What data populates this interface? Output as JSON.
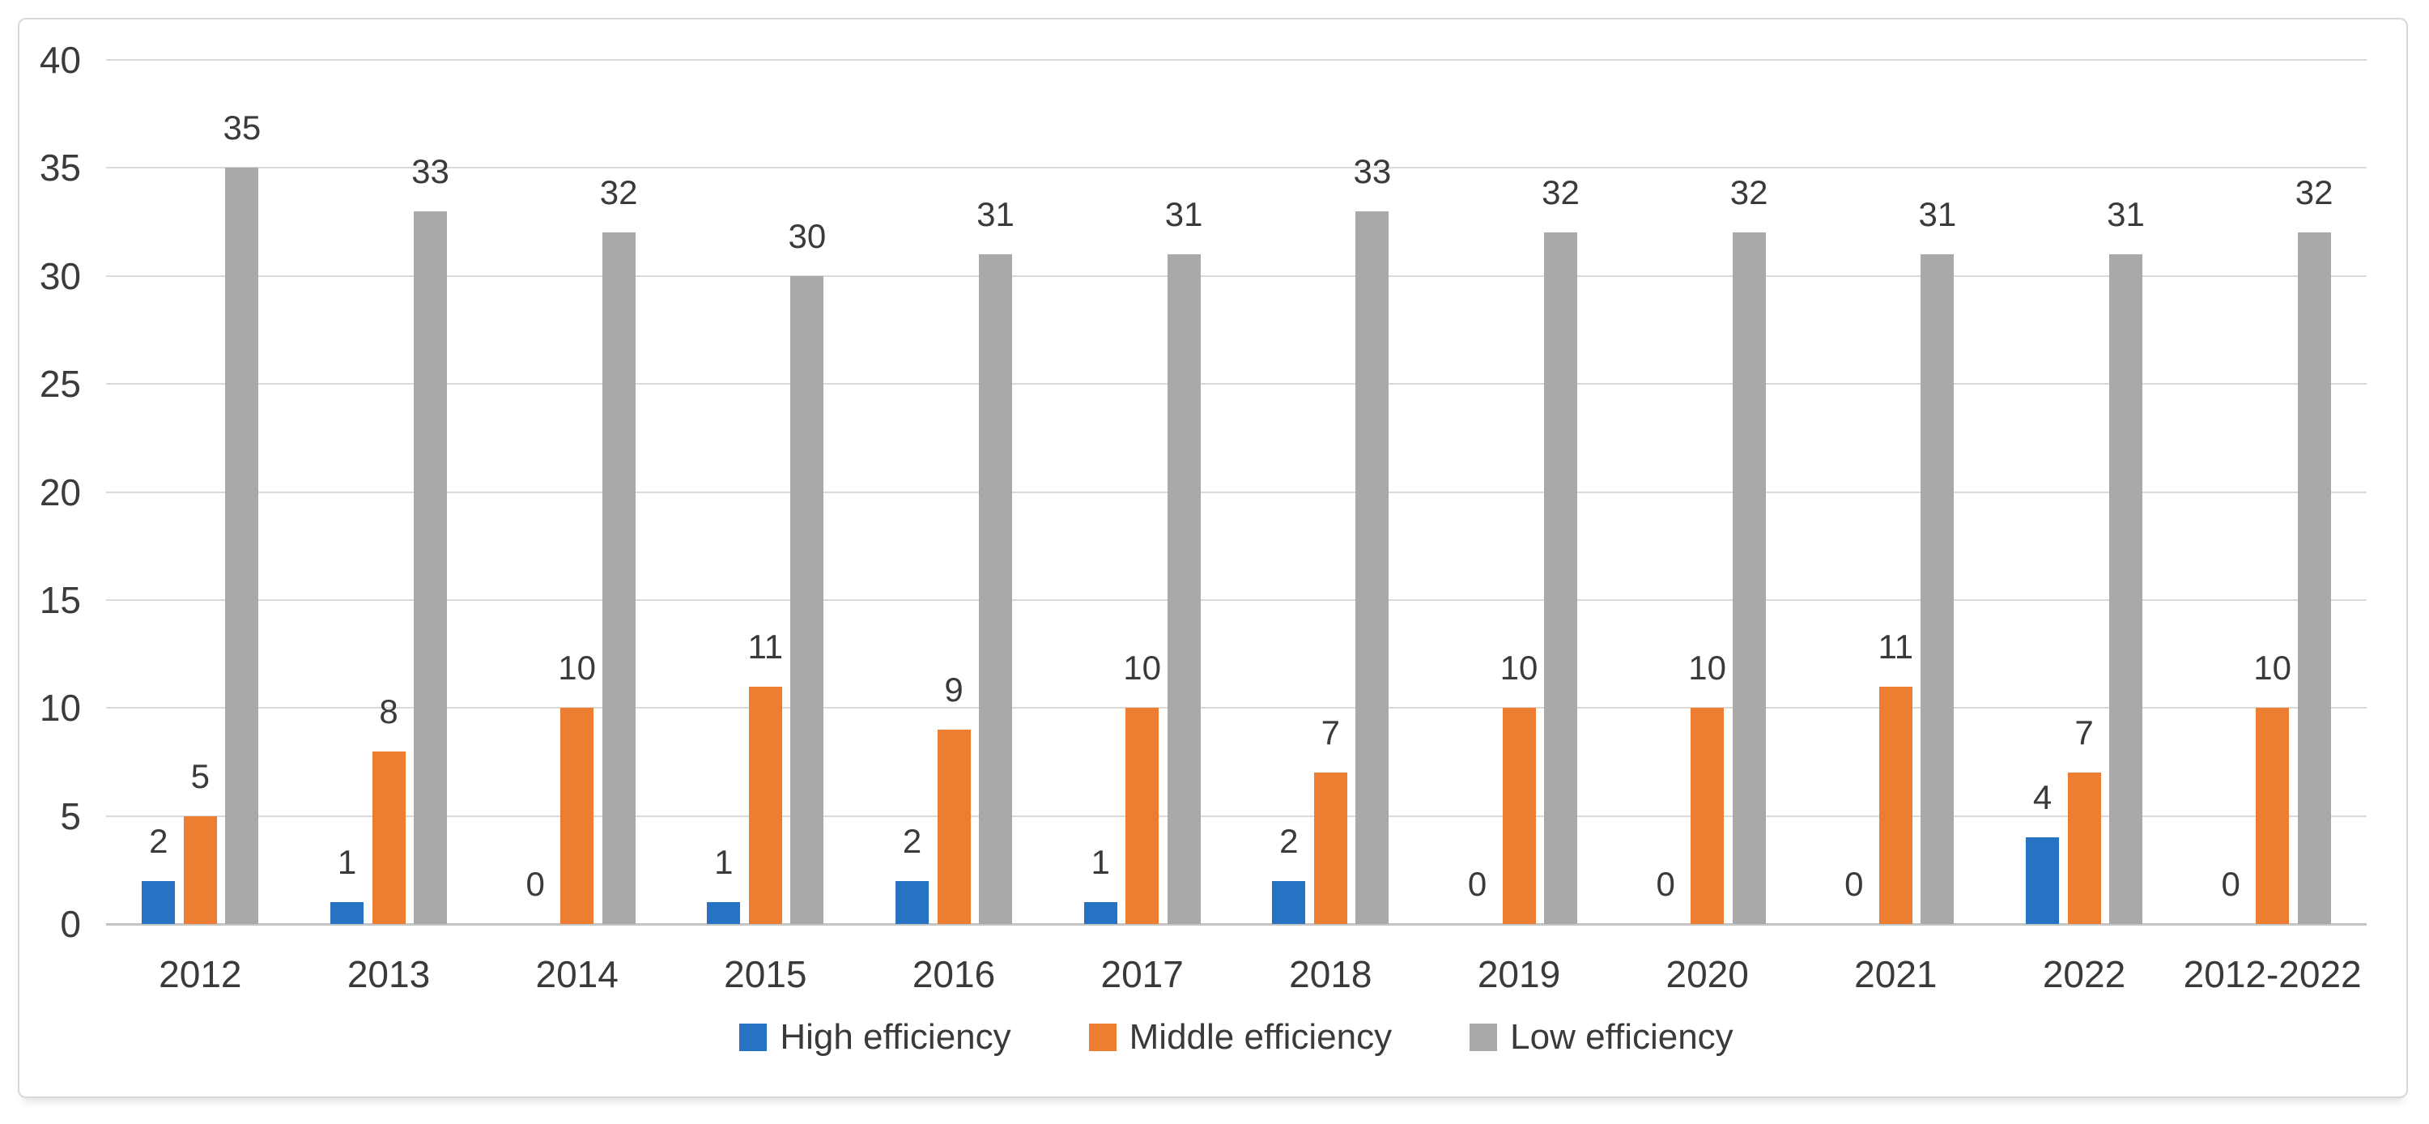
{
  "chart_data": {
    "type": "bar",
    "title": "",
    "xlabel": "",
    "ylabel": "",
    "categories": [
      "2012",
      "2013",
      "2014",
      "2015",
      "2016",
      "2017",
      "2018",
      "2019",
      "2020",
      "2021",
      "2022",
      "2012-2022"
    ],
    "series": [
      {
        "name": "High efficiency",
        "color": "#2772c3",
        "values": [
          2,
          1,
          0,
          1,
          2,
          1,
          2,
          0,
          0,
          0,
          4,
          0
        ]
      },
      {
        "name": "Middle efficiency",
        "color": "#ed7d31",
        "values": [
          5,
          8,
          10,
          11,
          9,
          10,
          7,
          10,
          10,
          11,
          7,
          10
        ]
      },
      {
        "name": "Low efficiency",
        "color": "#a9a9a9",
        "values": [
          35,
          33,
          32,
          30,
          31,
          31,
          33,
          32,
          32,
          31,
          31,
          32
        ]
      }
    ],
    "ylim": [
      0,
      40
    ],
    "ytick_step": 5,
    "yticks": [
      "0",
      "5",
      "10",
      "15",
      "20",
      "25",
      "30",
      "35",
      "40"
    ],
    "grid": true,
    "gridline_color": "#d9d9d9",
    "axis_line_color": "#c4c4c4",
    "data_labels": true,
    "legend_position": "bottom"
  }
}
